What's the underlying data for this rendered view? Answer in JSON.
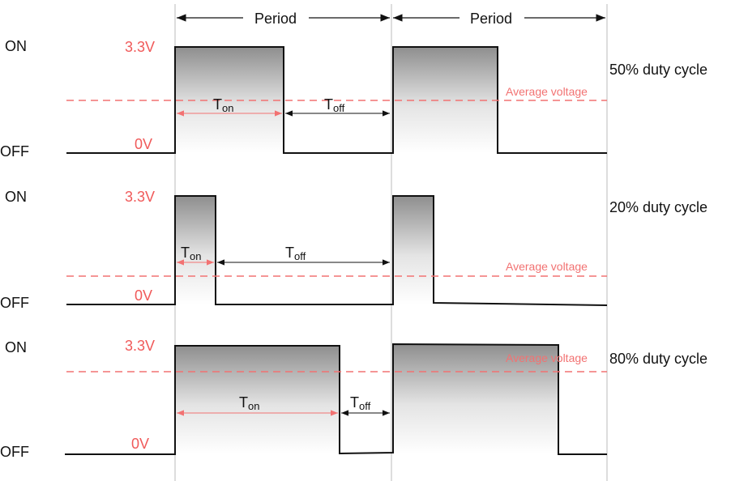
{
  "period_label": "Period",
  "on_label": "ON",
  "off_label": "OFF",
  "high_voltage_label": "3.3V",
  "low_voltage_label": "0V",
  "average_label": "Average voltage",
  "t_main": "T",
  "t_on_sub": "on",
  "t_off_sub": "off",
  "colors": {
    "signal": "#111111",
    "voltage_text": "#f05a5a",
    "average_line": "#f27272",
    "grid": "#bbbbbb"
  },
  "panels": [
    {
      "duty_label": "50% duty cycle",
      "duty": 0.5
    },
    {
      "duty_label": "20% duty cycle",
      "duty": 0.2
    },
    {
      "duty_label": "80% duty cycle",
      "duty": 0.8
    }
  ]
}
